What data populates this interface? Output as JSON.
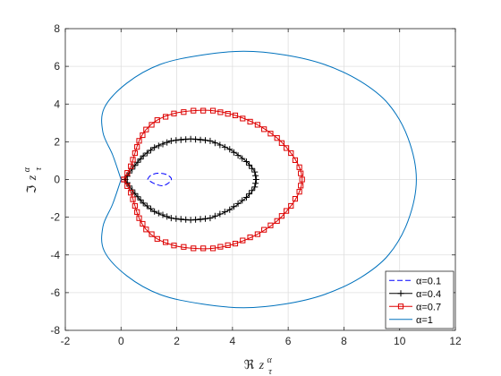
{
  "chart_data": {
    "type": "line",
    "xlabel": {
      "symbol": "ℜ",
      "var": "z",
      "sup": "α",
      "sub": "τ"
    },
    "ylabel": {
      "symbol": "ℑ",
      "var": "z",
      "sup": "α",
      "sub": "τ"
    },
    "xlim": [
      -2,
      12
    ],
    "ylim": [
      -8,
      8
    ],
    "xticks": [
      -2,
      0,
      2,
      4,
      6,
      8,
      10,
      12
    ],
    "yticks": [
      -8,
      -6,
      -4,
      -2,
      0,
      2,
      4,
      6,
      8
    ],
    "grid": true,
    "legend_position": "bottom-right",
    "series": [
      {
        "name": "α=0.1",
        "color": "#0000ff",
        "style": "dashed",
        "marker": "none",
        "x": [
          0.95,
          1.05,
          1.3,
          1.6,
          1.8,
          1.75,
          1.5,
          1.2,
          0.95
        ],
        "y": [
          0.0,
          0.2,
          0.33,
          0.28,
          0.07,
          -0.13,
          -0.33,
          -0.22,
          0.0
        ]
      },
      {
        "name": "α=0.4",
        "color": "#000000",
        "style": "solid",
        "marker": "plus",
        "x": [
          0.15,
          0.3,
          0.5,
          0.8,
          1.2,
          1.8,
          2.5,
          3.2,
          3.9,
          4.5,
          4.8,
          4.85,
          4.8,
          4.5,
          3.9,
          3.2,
          2.5,
          1.8,
          1.2,
          0.8,
          0.5,
          0.3,
          0.15
        ],
        "y": [
          0.0,
          0.35,
          0.75,
          1.25,
          1.7,
          2.05,
          2.15,
          2.05,
          1.6,
          0.95,
          0.4,
          0.0,
          -0.4,
          -0.95,
          -1.6,
          -2.05,
          -2.15,
          -2.05,
          -1.7,
          -1.25,
          -0.75,
          -0.35,
          0.0
        ]
      },
      {
        "name": "α=0.7",
        "color": "#dd0000",
        "style": "solid",
        "marker": "square",
        "x": [
          0.1,
          0.35,
          0.5,
          0.65,
          0.9,
          1.3,
          1.9,
          2.6,
          3.3,
          4.1,
          4.9,
          5.6,
          6.1,
          6.4,
          6.5,
          6.4,
          6.1,
          5.6,
          4.9,
          4.1,
          3.3,
          2.6,
          1.9,
          1.3,
          0.9,
          0.65,
          0.5,
          0.35,
          0.1
        ],
        "y": [
          0.0,
          0.7,
          1.4,
          2.05,
          2.65,
          3.15,
          3.5,
          3.65,
          3.65,
          3.4,
          2.9,
          2.2,
          1.4,
          0.65,
          0.0,
          -0.65,
          -1.4,
          -2.2,
          -2.9,
          -3.4,
          -3.65,
          -3.65,
          -3.5,
          -3.15,
          -2.65,
          -2.05,
          -1.4,
          -0.7,
          0.0
        ]
      },
      {
        "name": "α=1",
        "color": "#0072bd",
        "style": "solid",
        "marker": "none",
        "x": [
          0.0,
          -0.3,
          -0.65,
          -0.6,
          0.2,
          1.4,
          2.9,
          4.4,
          5.9,
          7.3,
          8.6,
          9.6,
          10.3,
          10.6,
          10.3,
          9.6,
          8.6,
          7.3,
          5.9,
          4.4,
          2.9,
          1.4,
          0.2,
          -0.6,
          -0.65,
          -0.3,
          0.0
        ],
        "y": [
          0.0,
          1.3,
          2.5,
          3.8,
          5.1,
          6.1,
          6.6,
          6.8,
          6.6,
          6.1,
          5.2,
          4.0,
          2.2,
          0.0,
          -2.2,
          -4.0,
          -5.2,
          -6.1,
          -6.6,
          -6.8,
          -6.6,
          -6.1,
          -5.1,
          -3.8,
          -2.5,
          -1.3,
          0.0
        ]
      }
    ]
  }
}
